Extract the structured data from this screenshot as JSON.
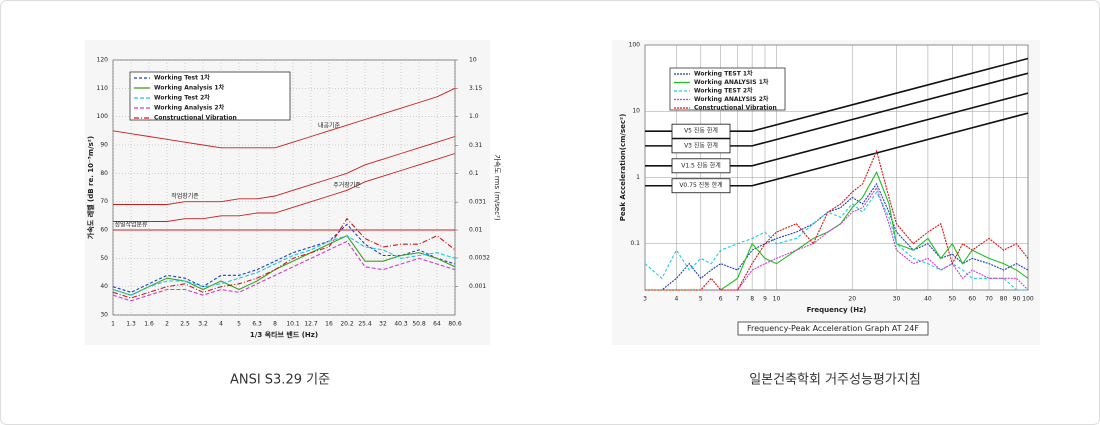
{
  "chart_data": [
    {
      "type": "line",
      "caption": "ANSI S3.29 기준",
      "xlabel": "1/3 옥타브 밴드 (Hz)",
      "ylabel": "가속도 레벨 (dB re. 10⁻⁵m/s²)",
      "y2label": "가속도 rms (m/sec²)",
      "categories": [
        "1",
        "1.3",
        "1.6",
        "2",
        "2.5",
        "3.2",
        "4",
        "5",
        "6.3",
        "8",
        "10.1",
        "12.7",
        "16",
        "20.2",
        "25.4",
        "32",
        "40.3",
        "50.8",
        "64",
        "80.6"
      ],
      "ylim": [
        30,
        120
      ],
      "yticks": [
        30,
        40,
        50,
        60,
        70,
        80,
        90,
        100,
        110,
        120
      ],
      "y2lim": [
        0.000316,
        10
      ],
      "y2log": true,
      "y2ticks": [
        10,
        3.15,
        {
          "value": 1,
          "label": "1.0"
        },
        0.31,
        0.1,
        0.031,
        0.01,
        0.0032,
        0.001
      ],
      "grid": true,
      "series": [
        {
          "name": "Working Test 1차",
          "color": "#1f3fbf",
          "dash": "3,2",
          "values": [
            40,
            38,
            41,
            44,
            43,
            40,
            44,
            44,
            46,
            49,
            52,
            54,
            56,
            62,
            55,
            51,
            51,
            53,
            50,
            48
          ]
        },
        {
          "name": "Working Analysis 1차",
          "color": "#3aa01e",
          "dash": "",
          "values": [
            39,
            37,
            40,
            43,
            42,
            39,
            42,
            39,
            42,
            46,
            49,
            52,
            55,
            58,
            49,
            49,
            51,
            52,
            50,
            47
          ]
        },
        {
          "name": "Working Test 2차",
          "color": "#18c8e0",
          "dash": "4,2",
          "values": [
            39,
            37,
            40,
            42,
            42,
            40,
            41,
            43,
            45,
            48,
            51,
            53,
            56,
            58,
            54,
            53,
            50,
            51,
            52,
            50
          ]
        },
        {
          "name": "Working Analysis 2차",
          "color": "#d03cd0",
          "dash": "4,2",
          "values": [
            37,
            35,
            37,
            39,
            39,
            37,
            39,
            38,
            41,
            44,
            47,
            50,
            53,
            56,
            47,
            46,
            48,
            50,
            48,
            46
          ]
        },
        {
          "name": "Constructional Vibration",
          "color": "#d01818",
          "dash": "5,2,1,2",
          "values": [
            38,
            36,
            38,
            40,
            41,
            38,
            40,
            41,
            43,
            46,
            50,
            52,
            54,
            64,
            57,
            54,
            55,
            55,
            58,
            53
          ]
        }
      ],
      "criteria": [
        {
          "label": "내공기준",
          "values": [
            95,
            94,
            93,
            92,
            91,
            90,
            89,
            89,
            89,
            89,
            91,
            93,
            95,
            97,
            99,
            101,
            103,
            105,
            107,
            110
          ]
        },
        {
          "label": "작업장기준",
          "values": [
            69,
            69,
            69,
            69,
            70,
            70,
            70,
            71,
            71,
            72,
            74,
            76,
            78,
            80,
            83,
            85,
            87,
            89,
            91,
            93
          ]
        },
        {
          "label": "주거장기준",
          "values": [
            63,
            63,
            63,
            63,
            64,
            64,
            65,
            65,
            66,
            66,
            68,
            70,
            72,
            74,
            77,
            79,
            81,
            83,
            85,
            87
          ]
        },
        {
          "label": "정밀작업분류",
          "values": [
            60,
            60,
            60,
            60,
            60,
            60,
            60,
            60,
            60,
            60,
            60,
            60,
            60,
            60,
            60,
            60,
            60,
            60,
            60,
            60
          ]
        }
      ]
    },
    {
      "type": "line",
      "caption": "일본건축학회 거주성능평가지침",
      "title": "Frequency-Peak Acceleration Graph AT 24F",
      "xlabel": "Frequency (Hz)",
      "ylabel": "Peak Acceleration(cm/sec²)",
      "xlog": true,
      "ylog": true,
      "xlim": [
        3,
        100
      ],
      "xticks": [
        3,
        4,
        5,
        6,
        7,
        8,
        9,
        10,
        20,
        30,
        40,
        50,
        60,
        70,
        80,
        90,
        100
      ],
      "ylim": [
        0.02,
        100
      ],
      "yticks": [
        100,
        10,
        1,
        0.1
      ],
      "grid": true,
      "x": [
        3,
        3.5,
        4,
        4.5,
        5,
        5.5,
        6,
        7,
        8,
        9,
        10,
        12,
        14,
        16,
        18,
        20,
        22,
        25,
        28,
        30,
        35,
        40,
        45,
        50,
        55,
        60,
        70,
        80,
        90,
        100
      ],
      "series": [
        {
          "name": "Working TEST 1차",
          "color": "#1f3fbf",
          "dash": "2,1",
          "values": [
            0.02,
            0.02,
            0.03,
            0.05,
            0.03,
            0.04,
            0.05,
            0.04,
            0.08,
            0.1,
            0.12,
            0.15,
            0.2,
            0.3,
            0.35,
            0.5,
            0.4,
            0.8,
            0.3,
            0.15,
            0.08,
            0.1,
            0.06,
            0.07,
            0.05,
            0.06,
            0.05,
            0.04,
            0.05,
            0.04
          ]
        },
        {
          "name": "Working ANALYSIS 1차",
          "color": "#20c020",
          "dash": "",
          "values": [
            0.02,
            0.02,
            0.02,
            0.02,
            0.02,
            0.02,
            0.02,
            0.03,
            0.1,
            0.06,
            0.05,
            0.08,
            0.12,
            0.15,
            0.2,
            0.35,
            0.5,
            1.2,
            0.4,
            0.1,
            0.08,
            0.12,
            0.06,
            0.1,
            0.05,
            0.08,
            0.06,
            0.05,
            0.04,
            0.03
          ]
        },
        {
          "name": "Working TEST 2차",
          "color": "#18d0e0",
          "dash": "3,2",
          "values": [
            0.05,
            0.03,
            0.08,
            0.04,
            0.06,
            0.05,
            0.08,
            0.1,
            0.12,
            0.15,
            0.1,
            0.12,
            0.2,
            0.3,
            0.25,
            0.4,
            0.3,
            0.6,
            0.25,
            0.1,
            0.06,
            0.05,
            0.04,
            0.05,
            0.04,
            0.03,
            0.03,
            0.03,
            0.02,
            0.02
          ]
        },
        {
          "name": "Working ANALYSIS 2차",
          "color": "#d03cd0",
          "dash": "2,1",
          "values": [
            0.02,
            0.02,
            0.02,
            0.02,
            0.02,
            0.02,
            0.02,
            0.02,
            0.04,
            0.05,
            0.06,
            0.08,
            0.1,
            0.15,
            0.2,
            0.3,
            0.35,
            0.7,
            0.2,
            0.08,
            0.05,
            0.06,
            0.04,
            0.05,
            0.03,
            0.04,
            0.03,
            0.03,
            0.03,
            0.02
          ]
        },
        {
          "name": "Constructional Vibration",
          "color": "#e01010",
          "dash": "2,1",
          "values": [
            0.02,
            0.02,
            0.02,
            0.02,
            0.02,
            0.03,
            0.02,
            0.02,
            0.05,
            0.1,
            0.15,
            0.2,
            0.1,
            0.3,
            0.4,
            0.6,
            0.8,
            2.5,
            0.5,
            0.2,
            0.1,
            0.15,
            0.2,
            0.05,
            0.1,
            0.08,
            0.12,
            0.08,
            0.1,
            0.06
          ]
        }
      ],
      "criteria": [
        {
          "label": "V5 진동 한계",
          "x": [
            3,
            8,
            100
          ],
          "values": [
            5,
            5,
            62.5
          ]
        },
        {
          "label": "V3 진동 한계",
          "x": [
            3,
            8,
            100
          ],
          "values": [
            3,
            3,
            37.5
          ]
        },
        {
          "label": "V1.5 진동 한계",
          "x": [
            3,
            8,
            100
          ],
          "values": [
            1.5,
            1.5,
            18.75
          ]
        },
        {
          "label": "V0.75 진동 한계",
          "x": [
            3,
            8,
            100
          ],
          "values": [
            0.75,
            0.75,
            9.375
          ]
        }
      ]
    }
  ]
}
